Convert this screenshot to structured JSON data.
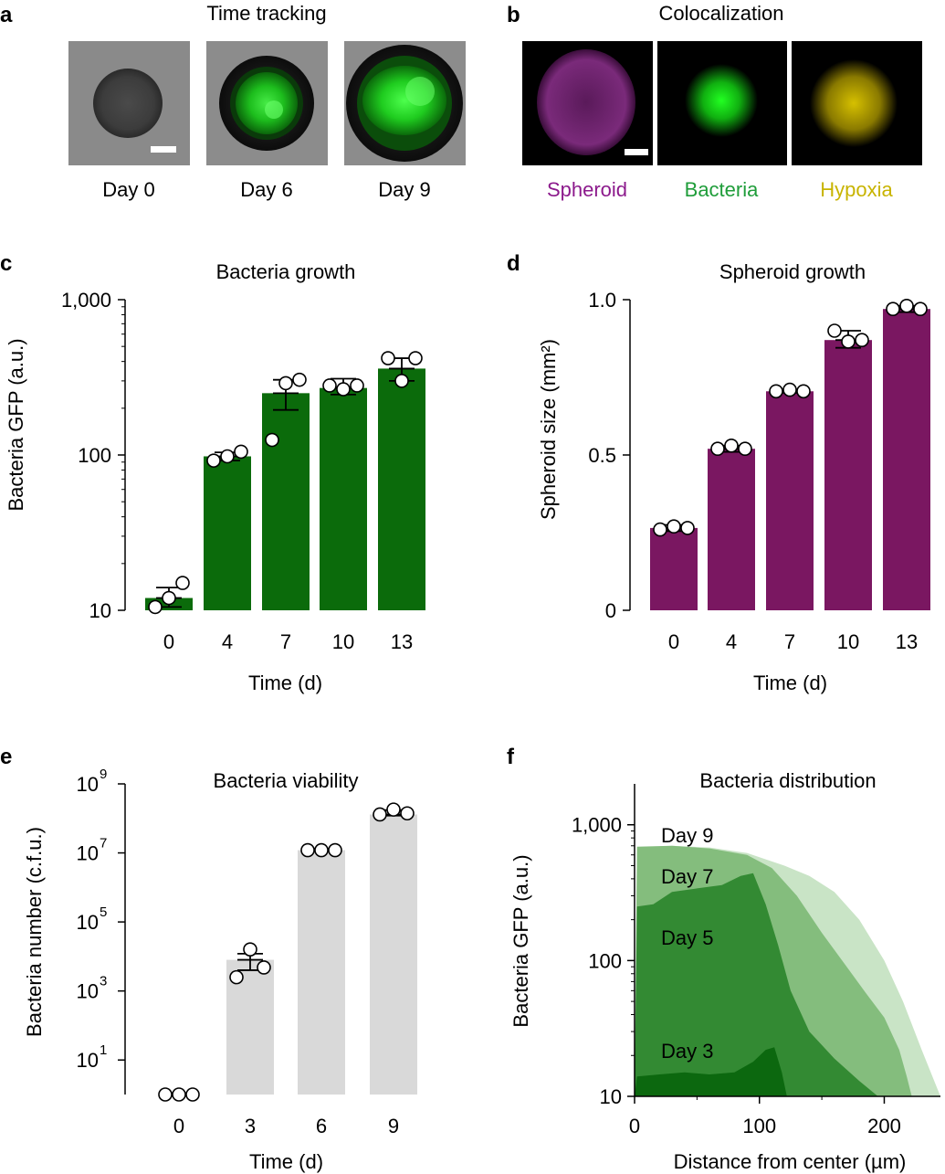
{
  "colors": {
    "green_bar": "#0b6b0b",
    "purple_bar": "#7a1761",
    "gray_bar": "#d9d9d9",
    "spheroid_label": "#8c1a8c",
    "bacteria_label": "#1f9d3a",
    "hypoxia_label": "#c8b400",
    "day9_fill": "#c9e4c6",
    "day7_fill": "#84bd7d",
    "day5_fill": "#338a33",
    "day3_fill": "#0c680f"
  },
  "panel_a": {
    "letter": "a",
    "title": "Time tracking",
    "images": [
      {
        "label": "Day 0",
        "content": "spheroid brightfield, no bacteria"
      },
      {
        "label": "Day 6",
        "content": "spheroid with green bacteria colony"
      },
      {
        "label": "Day 9",
        "content": "larger spheroid with bright green core"
      }
    ]
  },
  "panel_b": {
    "letter": "b",
    "title": "Colocalization",
    "images": [
      {
        "label": "Spheroid",
        "channel": "magenta"
      },
      {
        "label": "Bacteria",
        "channel": "green"
      },
      {
        "label": "Hypoxia",
        "channel": "yellow"
      }
    ]
  },
  "chart_data": [
    {
      "id": "c",
      "letter": "c",
      "type": "bar",
      "title": "Bacteria growth",
      "xlabel": "Time (d)",
      "ylabel": "Bacteria GFP (a.u.)",
      "yscale": "log",
      "ylim": [
        10,
        1000
      ],
      "yticks": [
        10,
        100,
        1000
      ],
      "yticklabels": [
        "10",
        "100",
        "1,000"
      ],
      "categories": [
        "0",
        "4",
        "7",
        "10",
        "13"
      ],
      "values": [
        12,
        98,
        250,
        270,
        360
      ],
      "errors": [
        [
          10.5,
          14
        ],
        [
          92,
          104
        ],
        [
          195,
          305
        ],
        [
          245,
          310
        ],
        [
          300,
          420
        ]
      ],
      "points": [
        [
          10.5,
          12,
          15
        ],
        [
          92,
          98,
          105
        ],
        [
          125,
          290,
          305
        ],
        [
          280,
          265,
          280
        ],
        [
          420,
          300,
          420
        ]
      ],
      "bar_color": "#0b6b0b"
    },
    {
      "id": "d",
      "letter": "d",
      "type": "bar",
      "title": "Spheroid growth",
      "xlabel": "Time (d)",
      "ylabel": "Spheroid size (mm²)",
      "yscale": "linear",
      "ylim": [
        0,
        1.0
      ],
      "yticks": [
        0,
        0.5,
        1.0
      ],
      "yticklabels": [
        "0",
        "0.5",
        "1.0"
      ],
      "categories": [
        "0",
        "4",
        "7",
        "10",
        "13"
      ],
      "values": [
        0.265,
        0.52,
        0.705,
        0.87,
        0.97
      ],
      "errors": [
        [
          0.255,
          0.275
        ],
        [
          0.51,
          0.53
        ],
        [
          0.7,
          0.71
        ],
        [
          0.845,
          0.9
        ],
        [
          0.96,
          0.98
        ]
      ],
      "points": [
        [
          0.26,
          0.27,
          0.265
        ],
        [
          0.52,
          0.53,
          0.52
        ],
        [
          0.705,
          0.71,
          0.705
        ],
        [
          0.9,
          0.865,
          0.87
        ],
        [
          0.97,
          0.98,
          0.97
        ]
      ],
      "bar_color": "#7a1761"
    },
    {
      "id": "e",
      "letter": "e",
      "type": "bar",
      "title": "Bacteria viability",
      "xlabel": "Time (d)",
      "ylabel": "Bacteria number (c.f.u.)",
      "yscale": "log",
      "ylim": [
        1,
        1000000000
      ],
      "yticks": [
        10,
        1000,
        100000,
        10000000,
        1000000000
      ],
      "ytick_base": "10",
      "ytick_exponents": [
        "1",
        "3",
        "5",
        "7",
        "9"
      ],
      "categories": [
        "0",
        "3",
        "6",
        "9"
      ],
      "values": [
        1,
        8000,
        12000000,
        130000000
      ],
      "errors": [
        null,
        [
          4000,
          12000
        ],
        null,
        [
          120000000,
          175000000
        ]
      ],
      "points": [
        [
          1,
          1,
          1
        ],
        [
          2500,
          16000,
          4800
        ],
        [
          12000000,
          12000000,
          12000000
        ],
        [
          130000000,
          180000000,
          140000000
        ]
      ],
      "bar_color": "#d9d9d9"
    },
    {
      "id": "f",
      "letter": "f",
      "type": "area",
      "title": "Bacteria distribution",
      "xlabel": "Distance from center (µm)",
      "ylabel": "Bacteria GFP (a.u.)",
      "yscale": "log",
      "ylim": [
        10,
        2000
      ],
      "xlim": [
        0,
        245
      ],
      "xticks": [
        0,
        100,
        200
      ],
      "xticklabels": [
        "0",
        "100",
        "200"
      ],
      "yticks": [
        10,
        100,
        1000
      ],
      "yticklabels": [
        "10",
        "100",
        "1,000"
      ],
      "series": [
        {
          "name": "Day 9",
          "color": "#c9e4c6",
          "x": [
            0,
            2,
            30,
            60,
            90,
            120,
            140,
            160,
            180,
            200,
            215,
            230,
            240,
            245
          ],
          "y": [
            10,
            680,
            700,
            680,
            620,
            500,
            420,
            320,
            200,
            100,
            50,
            22,
            13,
            10
          ]
        },
        {
          "name": "Day 7",
          "color": "#84bd7d",
          "x": [
            0,
            2,
            30,
            60,
            90,
            110,
            130,
            150,
            170,
            185,
            200,
            212,
            218,
            222
          ],
          "y": [
            10,
            690,
            700,
            670,
            600,
            480,
            300,
            160,
            90,
            58,
            38,
            22,
            14,
            10
          ]
        },
        {
          "name": "Day 5",
          "color": "#338a33",
          "x": [
            0,
            2,
            15,
            30,
            50,
            70,
            85,
            95,
            105,
            115,
            125,
            140,
            160,
            180,
            195
          ],
          "y": [
            10,
            250,
            260,
            320,
            340,
            360,
            420,
            440,
            260,
            130,
            60,
            30,
            19,
            13,
            10
          ]
        },
        {
          "name": "Day 3",
          "color": "#0c680f",
          "x": [
            0,
            2,
            20,
            40,
            60,
            80,
            95,
            105,
            112,
            118,
            122
          ],
          "y": [
            10,
            14,
            14.5,
            15,
            14.5,
            15,
            18,
            22,
            23,
            15,
            10
          ]
        }
      ],
      "legend": [
        "Day 9",
        "Day 7",
        "Day 5",
        "Day 3"
      ]
    }
  ]
}
